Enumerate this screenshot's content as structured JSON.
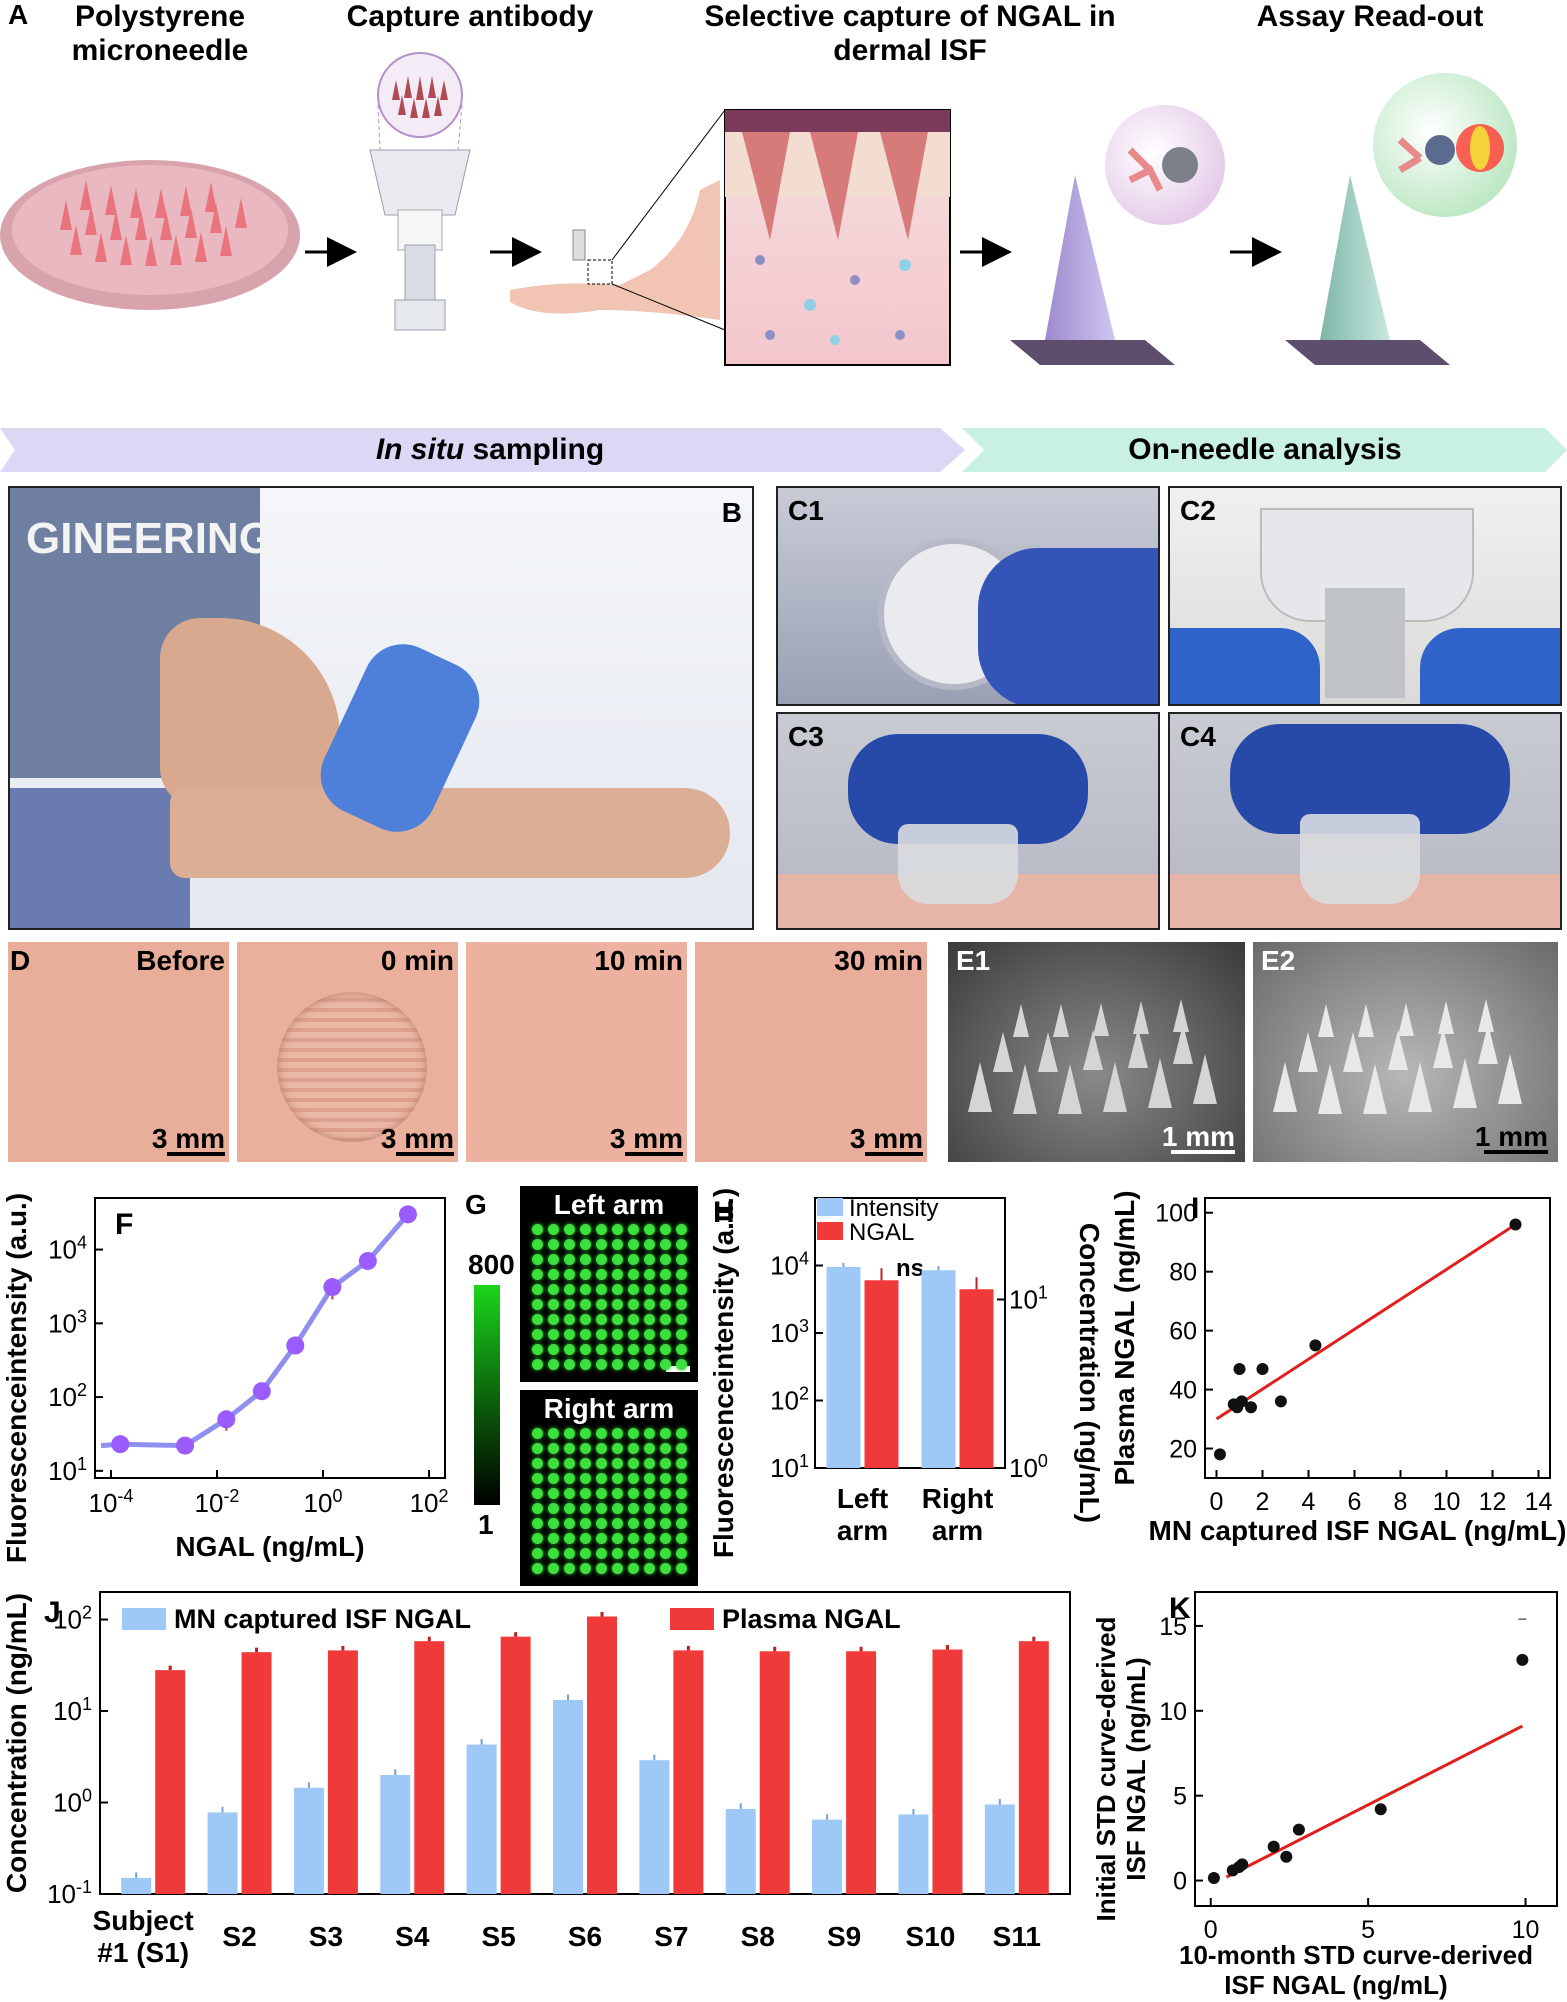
{
  "panel_a": {
    "letter": "A",
    "steps": [
      {
        "title": "Polystyrene microneedle"
      },
      {
        "title": "Capture antibody"
      },
      {
        "title": "Selective capture of NGAL in dermal ISF"
      },
      {
        "title": "Assay Read-out"
      }
    ],
    "arrow_left": "In situ sampling",
    "arrow_left_italic": "In situ",
    "arrow_left_rest": " sampling",
    "arrow_right": "On-needle analysis"
  },
  "panel_b": {
    "letter": "B"
  },
  "panel_c": {
    "labels": [
      "C1",
      "C2",
      "C3",
      "C4"
    ]
  },
  "panel_d": {
    "letter": "D",
    "timepoints": [
      "Before",
      "0 min",
      "10 min",
      "30 min"
    ],
    "scale": "3 mm"
  },
  "panel_e": {
    "labels": [
      "E1",
      "E2"
    ],
    "scale": "1 mm"
  },
  "panel_f": {
    "letter": "F"
  },
  "panel_g": {
    "letter": "G",
    "top": "Left arm",
    "bottom": "Right arm",
    "scale_max": "800",
    "scale_min": "1"
  },
  "panel_h": {
    "letter": "H",
    "sig": "ns"
  },
  "panel_i": {
    "letter": "I"
  },
  "panel_j": {
    "letter": "J"
  },
  "panel_k": {
    "letter": "K"
  },
  "colors": {
    "blue": "#9ec8f5",
    "red": "#f03a3a",
    "purple": "#9a5cff",
    "line": "#e0201e",
    "fit_purple": "#8f8ff0"
  },
  "chart_data": [
    {
      "id": "F",
      "type": "scatter",
      "xlabel": "NGAL (ng/mL)",
      "ylabel": "Fluorescenceintensity (a.u.)",
      "xscale": "log",
      "yscale": "log",
      "xlim": [
        5e-05,
        200
      ],
      "ylim": [
        8,
        50000
      ],
      "x_ticks": [
        "10-4",
        "10-2",
        "100",
        "102"
      ],
      "y_ticks": [
        "101",
        "102",
        "103",
        "104"
      ],
      "x": [
        0.00015,
        0.0025,
        0.015,
        0.07,
        0.3,
        1.5,
        7,
        40
      ],
      "y": [
        23,
        22,
        50,
        120,
        500,
        3100,
        7000,
        30000
      ],
      "err": [
        3,
        3,
        15,
        20,
        60,
        1000,
        700,
        2000
      ]
    },
    {
      "id": "H",
      "type": "bar",
      "categories": [
        "Left arm",
        "Right arm"
      ],
      "series": [
        {
          "name": "Intensity",
          "values": [
            9500,
            8500
          ],
          "axis": "left"
        },
        {
          "name": "NGAL",
          "values": [
            13,
            11.5
          ],
          "axis": "right"
        }
      ],
      "ylabel": "Fluorescenceintensity (a.u.)",
      "ylabel_right": "Concentration (ng/mL)",
      "ylim": [
        10,
        100000
      ],
      "ylim_right": [
        1,
        40
      ],
      "y_ticks": [
        "101",
        "102",
        "103",
        "104"
      ],
      "y_ticks_right": [
        "100",
        "101"
      ]
    },
    {
      "id": "I",
      "type": "scatter",
      "xlabel": "MN captured  ISF NGAL (ng/mL)",
      "ylabel": "Plasma NGAL (ng/mL)",
      "xlim": [
        -0.5,
        14.5
      ],
      "ylim": [
        10,
        105
      ],
      "x_ticks": [
        "0",
        "2",
        "4",
        "6",
        "8",
        "10",
        "12",
        "14"
      ],
      "y_ticks": [
        "20",
        "40",
        "60",
        "80",
        "100"
      ],
      "x": [
        0.15,
        0.75,
        0.9,
        1.0,
        1.5,
        2.0,
        2.8,
        4.3,
        13.0,
        1.1
      ],
      "y": [
        18,
        35,
        34,
        47,
        34,
        47,
        36,
        55,
        96,
        36
      ],
      "fit": [
        [
          0,
          30
        ],
        [
          13,
          96
        ]
      ]
    },
    {
      "id": "J",
      "type": "bar",
      "categories": [
        "Subject #1 (S1)",
        "S2",
        "S3",
        "S4",
        "S5",
        "S6",
        "S7",
        "S8",
        "S9",
        "S10",
        "S11"
      ],
      "series": [
        {
          "name": "MN captured  ISF NGAL",
          "values": [
            0.15,
            0.78,
            1.45,
            2.0,
            4.3,
            13.2,
            2.9,
            0.85,
            0.65,
            0.74,
            0.95
          ]
        },
        {
          "name": "Plasma NGAL",
          "values": [
            28,
            44,
            46,
            58,
            65,
            108,
            46,
            45,
            45,
            47,
            58
          ]
        }
      ],
      "ylabel": "Concentration (ng/mL)",
      "yscale": "log",
      "ylim": [
        0.1,
        200
      ],
      "y_ticks": [
        "10-1",
        "100",
        "101",
        "102"
      ]
    },
    {
      "id": "K",
      "type": "scatter",
      "xlabel": "10-month STD curve-derived ISF NGAL (ng/mL)",
      "ylabel": "Initial STD curve-derived ISF NGAL (ng/mL)",
      "xlim": [
        -0.5,
        11
      ],
      "ylim": [
        -1.5,
        17
      ],
      "x_ticks": [
        "0",
        "5",
        "10"
      ],
      "y_ticks": [
        "0",
        "5",
        "10",
        "15"
      ],
      "x": [
        0.1,
        0.7,
        0.9,
        1.0,
        2.0,
        2.4,
        2.8,
        5.4,
        9.9
      ],
      "y": [
        0.15,
        0.6,
        0.8,
        0.95,
        2.0,
        1.4,
        3.0,
        4.2,
        13.0
      ],
      "fit": [
        [
          0.5,
          0.2
        ],
        [
          9.9,
          9.1
        ]
      ]
    }
  ]
}
